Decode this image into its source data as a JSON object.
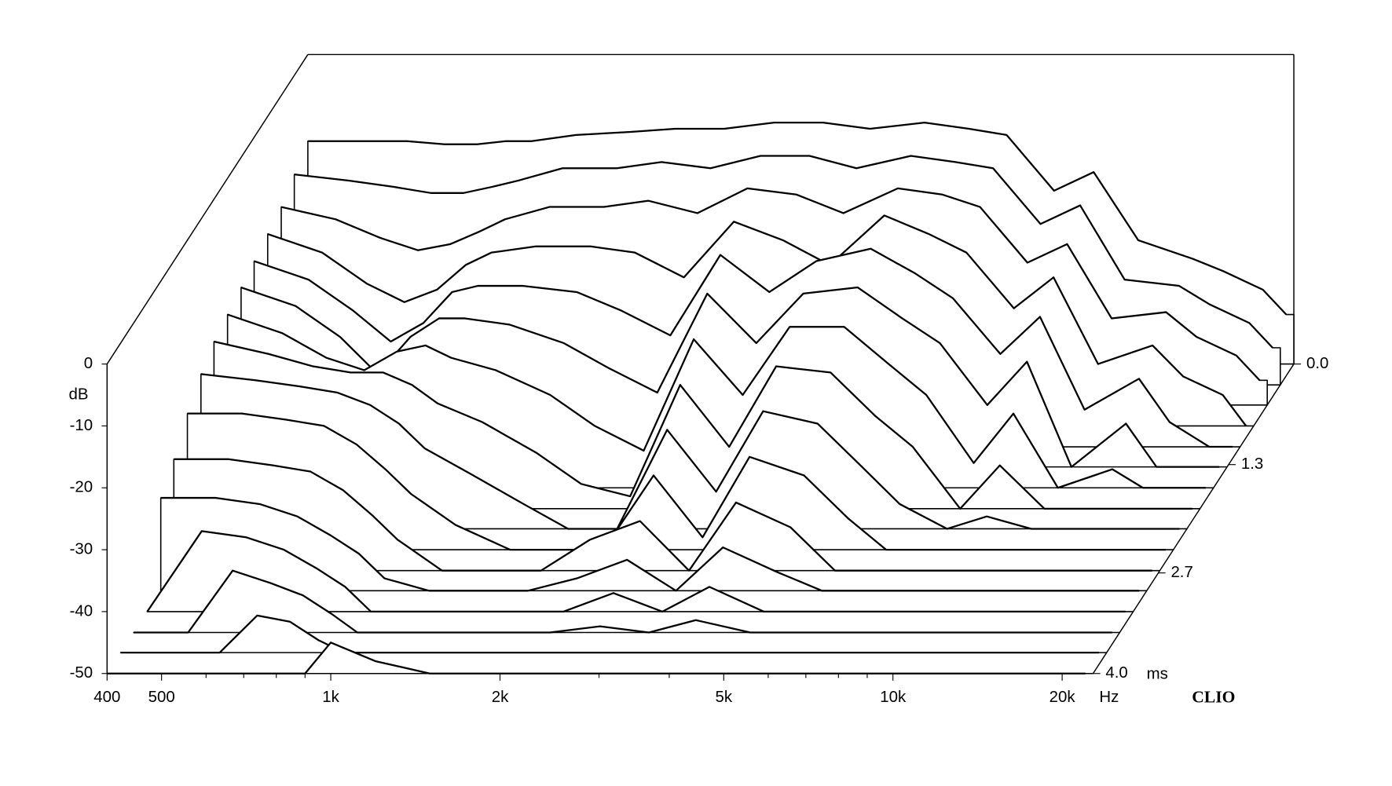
{
  "chart_data": {
    "type": "waterfall",
    "ylabel": "dB",
    "x_unit": "Hz",
    "z_unit": "ms",
    "annotation": "CLIO",
    "color": "#000000",
    "x": [
      400,
      500,
      600,
      700,
      800,
      900,
      1000,
      1200,
      1500,
      1800,
      2200,
      2700,
      3300,
      4000,
      5000,
      6000,
      7000,
      8500,
      10000,
      12000,
      15000,
      17000,
      20000,
      22000
    ],
    "z": [
      0,
      0.27,
      0.53,
      0.8,
      1.07,
      1.33,
      1.6,
      1.87,
      2.13,
      2.4,
      2.67,
      2.93,
      3.2,
      3.47,
      3.73,
      4
    ],
    "values": [
      [
        -14,
        -14,
        -14,
        -14.5,
        -14.5,
        -14,
        -14,
        -13,
        -12.5,
        -12,
        -12,
        -11,
        -11,
        -12,
        -11,
        -12,
        -13,
        -22,
        -19,
        -30,
        -33,
        -35,
        -38,
        -42
      ],
      [
        -16,
        -17,
        -18,
        -19,
        -19,
        -18,
        -17,
        -15,
        -15,
        -14,
        -15,
        -13,
        -13,
        -15,
        -13,
        -14,
        -15,
        -24,
        -21,
        -33,
        -34,
        -37,
        -40,
        -44
      ],
      [
        -18,
        -20,
        -23,
        -25,
        -24,
        -22,
        -20,
        -18,
        -18,
        -17,
        -19,
        -15,
        -16,
        -19,
        -15,
        -16,
        -18,
        -27,
        -24,
        -36,
        -35,
        -39,
        -42,
        -46
      ],
      [
        -19,
        -22,
        -27,
        -30,
        -28,
        -24,
        -22,
        -21,
        -21,
        -22,
        -26,
        -17,
        -20,
        -24,
        -16,
        -19,
        -22,
        -31,
        -26,
        -40,
        -37,
        -42,
        -45,
        -50
      ],
      [
        -20,
        -23,
        -28,
        -33,
        -30,
        -25,
        -24,
        -24,
        -25,
        -28,
        -32,
        -19,
        -25,
        -20,
        -18,
        -22,
        -26,
        -35,
        -29,
        -44,
        -39,
        -46,
        -50,
        -50
      ],
      [
        -21,
        -24,
        -29,
        -35,
        -29,
        -26,
        -26,
        -27,
        -30,
        -34,
        -38,
        -22,
        -30,
        -22,
        -21,
        -26,
        -30,
        -40,
        -33,
        -50,
        -43,
        -50,
        -50,
        -50
      ],
      [
        -22,
        -25,
        -29,
        -31,
        -28,
        -27,
        -29,
        -31,
        -35,
        -40,
        -44,
        -26,
        -35,
        -24,
        -24,
        -30,
        -35,
        -46,
        -38,
        -50,
        -47,
        -50,
        -50,
        -50
      ],
      [
        -23,
        -25,
        -27,
        -28,
        -28,
        -30,
        -33,
        -36,
        -41,
        -46,
        -48,
        -30,
        -40,
        -27,
        -28,
        -35,
        -40,
        -50,
        -43,
        -50,
        -50,
        -50,
        -50,
        -50
      ],
      [
        -25,
        -26,
        -27,
        -28,
        -30,
        -33,
        -37,
        -41,
        -46,
        -50,
        -50,
        -34,
        -44,
        -31,
        -33,
        -40,
        -46,
        -50,
        -48,
        -50,
        -50,
        -50,
        -50,
        -50
      ],
      [
        -28,
        -28,
        -29,
        -30,
        -33,
        -37,
        -41,
        -46,
        -50,
        -50,
        -50,
        -38,
        -48,
        -35,
        -38,
        -45,
        -50,
        -50,
        -50,
        -50,
        -50,
        -50,
        -50,
        -50
      ],
      [
        -32,
        -32,
        -33,
        -34,
        -37,
        -41,
        -45,
        -50,
        -50,
        -50,
        -45,
        -42,
        -50,
        -39,
        -43,
        -50,
        -50,
        -50,
        -50,
        -50,
        -50,
        -50,
        -50,
        -50
      ],
      [
        -35,
        -35,
        -36,
        -38,
        -41,
        -44,
        -48,
        -50,
        -50,
        -50,
        -48,
        -45,
        -50,
        -43,
        -47,
        -50,
        -50,
        -50,
        -50,
        -50,
        -50,
        -50,
        -50,
        -50
      ],
      [
        -50,
        -37,
        -38,
        -40,
        -43,
        -46,
        -50,
        -50,
        -50,
        -50,
        -50,
        -47,
        -50,
        -46,
        -50,
        -50,
        -50,
        -50,
        -50,
        -50,
        -50,
        -50,
        -50,
        -50
      ],
      [
        -50,
        -50,
        -40,
        -42,
        -44,
        -47,
        -50,
        -50,
        -50,
        -50,
        -50,
        -49,
        -50,
        -48,
        -50,
        -50,
        -50,
        -50,
        -50,
        -50,
        -50,
        -50,
        -50,
        -50
      ],
      [
        -50,
        -50,
        -50,
        -44,
        -45,
        -48,
        -50,
        -50,
        -50,
        -50,
        -50,
        -50,
        -50,
        -50,
        -50,
        -50,
        -50,
        -50,
        -50,
        -50,
        -50,
        -50,
        -50,
        -50
      ],
      [
        -50,
        -50,
        -50,
        -50,
        -50,
        -50,
        -45,
        -48,
        -50,
        -50,
        -50,
        -50,
        -50,
        -50,
        -50,
        -50,
        -50,
        -50,
        -50,
        -50,
        -50,
        -50,
        -50,
        -50
      ]
    ],
    "xlim": [
      400,
      22700
    ],
    "xlog": true,
    "xticks": [
      400,
      500,
      {
        "value": 1000,
        "label": "1k"
      },
      {
        "value": 2000,
        "label": "2k"
      },
      {
        "value": 5000,
        "label": "5k"
      },
      {
        "value": 10000,
        "label": "10k"
      },
      {
        "value": 20000,
        "label": "20k"
      }
    ],
    "xminorticks": [
      600,
      700,
      800,
      900,
      3000,
      4000,
      6000,
      7000,
      8000,
      9000
    ],
    "ylim": [
      -50,
      0
    ],
    "yticks": [
      0,
      -10,
      -20,
      -30,
      -40,
      -50
    ],
    "zlim": [
      0,
      4
    ],
    "zticks": [
      {
        "value": 0,
        "label": "0.0"
      },
      {
        "value": 1.3,
        "label": "1.3"
      },
      {
        "value": 2.7,
        "label": "2.7"
      },
      {
        "value": 4,
        "label": "4.0"
      }
    ]
  }
}
